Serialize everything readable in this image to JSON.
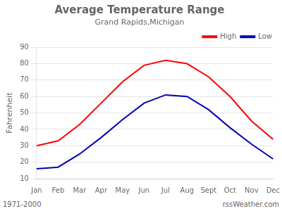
{
  "chart_data": {
    "type": "line",
    "title": "Average Temperature Range",
    "subtitle": "Grand Rapids,Michigan",
    "ylabel": "Fahrenheit",
    "categories": [
      "Jan",
      "Feb",
      "Mar",
      "Apr",
      "May",
      "Jun",
      "Jul",
      "Aug",
      "Sept",
      "Oct",
      "Nov",
      "Dec"
    ],
    "series": [
      {
        "name": "High",
        "color": "#ff0000",
        "values": [
          30,
          33,
          43,
          56,
          69,
          79,
          82,
          80,
          72,
          60,
          45,
          34
        ]
      },
      {
        "name": "Low",
        "color": "#0000bb",
        "values": [
          16,
          17,
          25,
          35,
          46,
          56,
          61,
          60,
          52,
          41,
          31,
          22
        ]
      }
    ],
    "ylim": [
      10,
      90
    ],
    "yticks": [
      10,
      20,
      30,
      40,
      50,
      60,
      70,
      80,
      90
    ],
    "grid": true,
    "legend": "upper right",
    "annotations": [
      "1971-2000",
      "rssWeather.com"
    ]
  }
}
